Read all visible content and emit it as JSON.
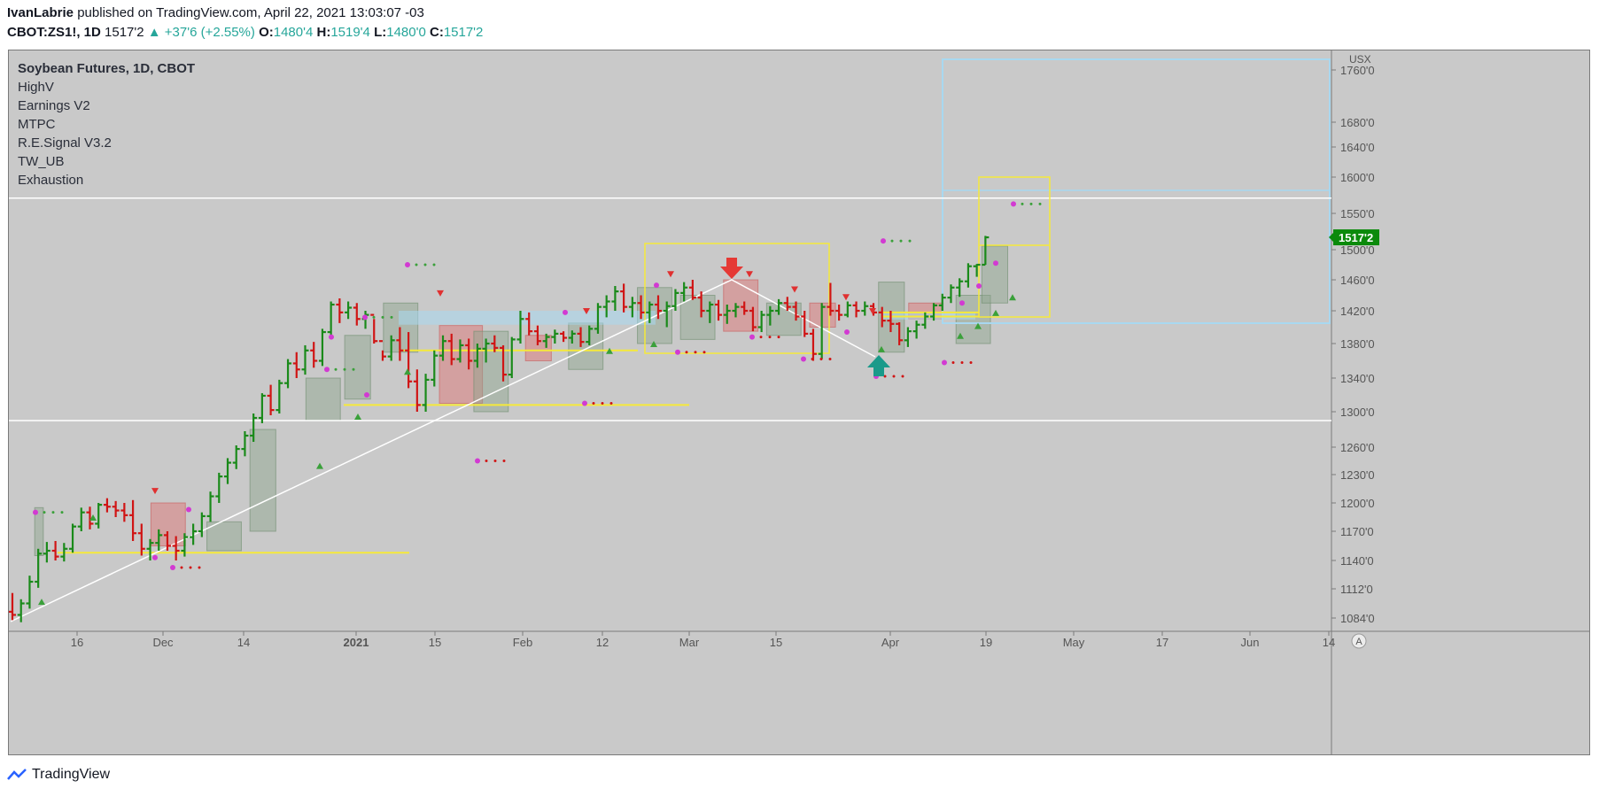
{
  "header": {
    "author": "IvanLabrie",
    "published_text": "published on TradingView.com, April 22, 2021 13:03:07 -03"
  },
  "ohlc_line": {
    "symbol": "CBOT:ZS1!, 1D",
    "last": "1517'2",
    "change": "▲ +37'6 (+2.55%)",
    "o_label": "O:",
    "o": "1480'4",
    "h_label": "H:",
    "h": "1519'4",
    "l_label": "L:",
    "l": "1480'0",
    "c_label": "C:",
    "c": "1517'2"
  },
  "legend": {
    "title": "Soybean Futures, 1D, CBOT",
    "indicators": [
      "HighV",
      "Earnings V2",
      "MTPC",
      "R.E.Signal V3.2",
      "TW_UB",
      "Exhaustion"
    ]
  },
  "footer": {
    "brand": "TradingView"
  },
  "colors": {
    "background": "#c9c9c9",
    "up_bar": "#1a8a1a",
    "down_bar": "#d01515",
    "neutral_bar": "#3a3a3a",
    "yellow": "#f5e93a",
    "lightblue": "#a8d8f0",
    "white": "#ffffff",
    "magenta": "#d23ad2",
    "price_tag": "#0b8a0b"
  },
  "chart_data": {
    "type": "ohlc",
    "symbol": "CBOT:ZS1!",
    "interval": "1D",
    "currency_label": "USX",
    "price_axis_ticks": [
      "1084'0",
      "1112'0",
      "1140'0",
      "1170'0",
      "1200'0",
      "1230'0",
      "1260'0",
      "1300'0",
      "1340'0",
      "1380'0",
      "1420'0",
      "1460'0",
      "1500'0",
      "1550'0",
      "1600'0",
      "1640'0",
      "1680'0",
      "1760'0"
    ],
    "time_axis_ticks": [
      "16",
      "Dec",
      "14",
      "2021",
      "15",
      "Feb",
      "12",
      "Mar",
      "15",
      "Apr",
      "19",
      "May",
      "17",
      "Jun",
      "14"
    ],
    "last_price_label": "1517'2",
    "horizontal_levels": [
      1571,
      1290
    ],
    "series": [
      {
        "name": "ZS1!",
        "bars": [
          [
            1090,
            1108,
            1082,
            1087
          ],
          [
            1087,
            1102,
            1080,
            1098
          ],
          [
            1098,
            1125,
            1093,
            1119
          ],
          [
            1119,
            1152,
            1113,
            1147
          ],
          [
            1147,
            1159,
            1138,
            1150
          ],
          [
            1150,
            1160,
            1140,
            1144
          ],
          [
            1144,
            1158,
            1139,
            1152
          ],
          [
            1152,
            1178,
            1148,
            1175
          ],
          [
            1175,
            1195,
            1170,
            1190
          ],
          [
            1190,
            1196,
            1172,
            1178
          ],
          [
            1178,
            1200,
            1173,
            1198
          ],
          [
            1198,
            1205,
            1190,
            1196
          ],
          [
            1196,
            1202,
            1185,
            1192
          ],
          [
            1192,
            1200,
            1180,
            1187
          ],
          [
            1187,
            1203,
            1160,
            1168
          ],
          [
            1168,
            1178,
            1145,
            1152
          ],
          [
            1152,
            1162,
            1140,
            1158
          ],
          [
            1158,
            1172,
            1150,
            1166
          ],
          [
            1166,
            1170,
            1150,
            1155
          ],
          [
            1155,
            1165,
            1140,
            1150
          ],
          [
            1150,
            1168,
            1144,
            1164
          ],
          [
            1164,
            1178,
            1156,
            1170
          ],
          [
            1170,
            1190,
            1164,
            1186
          ],
          [
            1186,
            1212,
            1180,
            1207
          ],
          [
            1207,
            1232,
            1200,
            1228
          ],
          [
            1228,
            1248,
            1220,
            1243
          ],
          [
            1243,
            1262,
            1236,
            1258
          ],
          [
            1258,
            1278,
            1250,
            1273
          ],
          [
            1273,
            1298,
            1266,
            1293
          ],
          [
            1293,
            1322,
            1287,
            1319
          ],
          [
            1319,
            1332,
            1296,
            1302
          ],
          [
            1302,
            1338,
            1298,
            1334
          ],
          [
            1334,
            1362,
            1328,
            1357
          ],
          [
            1357,
            1370,
            1340,
            1350
          ],
          [
            1350,
            1378,
            1344,
            1372
          ],
          [
            1372,
            1382,
            1352,
            1360
          ],
          [
            1360,
            1398,
            1354,
            1394
          ],
          [
            1394,
            1432,
            1388,
            1428
          ],
          [
            1428,
            1436,
            1405,
            1418
          ],
          [
            1418,
            1432,
            1410,
            1424
          ],
          [
            1424,
            1430,
            1402,
            1410
          ],
          [
            1410,
            1420,
            1398,
            1415
          ],
          [
            1415,
            1410,
            1380,
            1383
          ],
          [
            1383,
            1372,
            1360,
            1365
          ],
          [
            1365,
            1390,
            1360,
            1384
          ],
          [
            1384,
            1400,
            1360,
            1372
          ],
          [
            1372,
            1394,
            1328,
            1336
          ],
          [
            1336,
            1350,
            1300,
            1308
          ],
          [
            1308,
            1345,
            1300,
            1338
          ],
          [
            1338,
            1372,
            1330,
            1366
          ],
          [
            1366,
            1390,
            1360,
            1383
          ],
          [
            1383,
            1392,
            1355,
            1362
          ],
          [
            1362,
            1385,
            1358,
            1378
          ],
          [
            1378,
            1386,
            1350,
            1360
          ],
          [
            1360,
            1380,
            1352,
            1374
          ],
          [
            1374,
            1386,
            1358,
            1380
          ],
          [
            1380,
            1390,
            1370,
            1375
          ],
          [
            1375,
            1378,
            1336,
            1344
          ],
          [
            1344,
            1388,
            1340,
            1385
          ],
          [
            1385,
            1420,
            1380,
            1410
          ],
          [
            1410,
            1418,
            1390,
            1395
          ],
          [
            1395,
            1402,
            1378,
            1383
          ],
          [
            1383,
            1392,
            1375,
            1388
          ],
          [
            1388,
            1397,
            1380,
            1392
          ],
          [
            1392,
            1395,
            1382,
            1387
          ],
          [
            1387,
            1396,
            1380,
            1392
          ],
          [
            1392,
            1400,
            1376,
            1382
          ],
          [
            1382,
            1402,
            1378,
            1398
          ],
          [
            1398,
            1430,
            1392,
            1425
          ],
          [
            1425,
            1440,
            1412,
            1432
          ],
          [
            1432,
            1452,
            1420,
            1445
          ],
          [
            1445,
            1455,
            1418,
            1425
          ],
          [
            1425,
            1438,
            1412,
            1430
          ],
          [
            1430,
            1440,
            1410,
            1418
          ],
          [
            1418,
            1432,
            1405,
            1428
          ],
          [
            1428,
            1440,
            1410,
            1420
          ],
          [
            1420,
            1432,
            1400,
            1426
          ],
          [
            1426,
            1448,
            1420,
            1443
          ],
          [
            1443,
            1457,
            1432,
            1450
          ],
          [
            1450,
            1460,
            1434,
            1437
          ],
          [
            1437,
            1445,
            1412,
            1420
          ],
          [
            1420,
            1432,
            1405,
            1428
          ],
          [
            1428,
            1434,
            1408,
            1415
          ],
          [
            1415,
            1428,
            1404,
            1420
          ],
          [
            1420,
            1430,
            1412,
            1425
          ],
          [
            1425,
            1432,
            1415,
            1420
          ],
          [
            1420,
            1425,
            1395,
            1400
          ],
          [
            1400,
            1420,
            1394,
            1415
          ],
          [
            1415,
            1426,
            1402,
            1420
          ],
          [
            1420,
            1435,
            1415,
            1430
          ],
          [
            1430,
            1438,
            1420,
            1425
          ],
          [
            1425,
            1432,
            1408,
            1413
          ],
          [
            1413,
            1420,
            1388,
            1392
          ],
          [
            1392,
            1398,
            1360,
            1368
          ],
          [
            1368,
            1430,
            1362,
            1425
          ],
          [
            1425,
            1456,
            1414,
            1420
          ],
          [
            1420,
            1428,
            1408,
            1415
          ],
          [
            1415,
            1432,
            1412,
            1427
          ],
          [
            1427,
            1432,
            1412,
            1420
          ],
          [
            1420,
            1432,
            1414,
            1426
          ],
          [
            1426,
            1430,
            1414,
            1418
          ],
          [
            1418,
            1425,
            1400,
            1408
          ],
          [
            1408,
            1420,
            1394,
            1404
          ],
          [
            1404,
            1406,
            1378,
            1384
          ],
          [
            1384,
            1400,
            1376,
            1395
          ],
          [
            1395,
            1408,
            1386,
            1403
          ],
          [
            1403,
            1418,
            1398,
            1413
          ],
          [
            1413,
            1430,
            1408,
            1427
          ],
          [
            1427,
            1442,
            1420,
            1437
          ],
          [
            1437,
            1454,
            1430,
            1450
          ],
          [
            1450,
            1462,
            1438,
            1458
          ],
          [
            1458,
            1482,
            1450,
            1478
          ],
          [
            1478,
            1481,
            1464,
            1480
          ],
          [
            1480,
            1519,
            1480,
            1517
          ]
        ]
      }
    ]
  }
}
